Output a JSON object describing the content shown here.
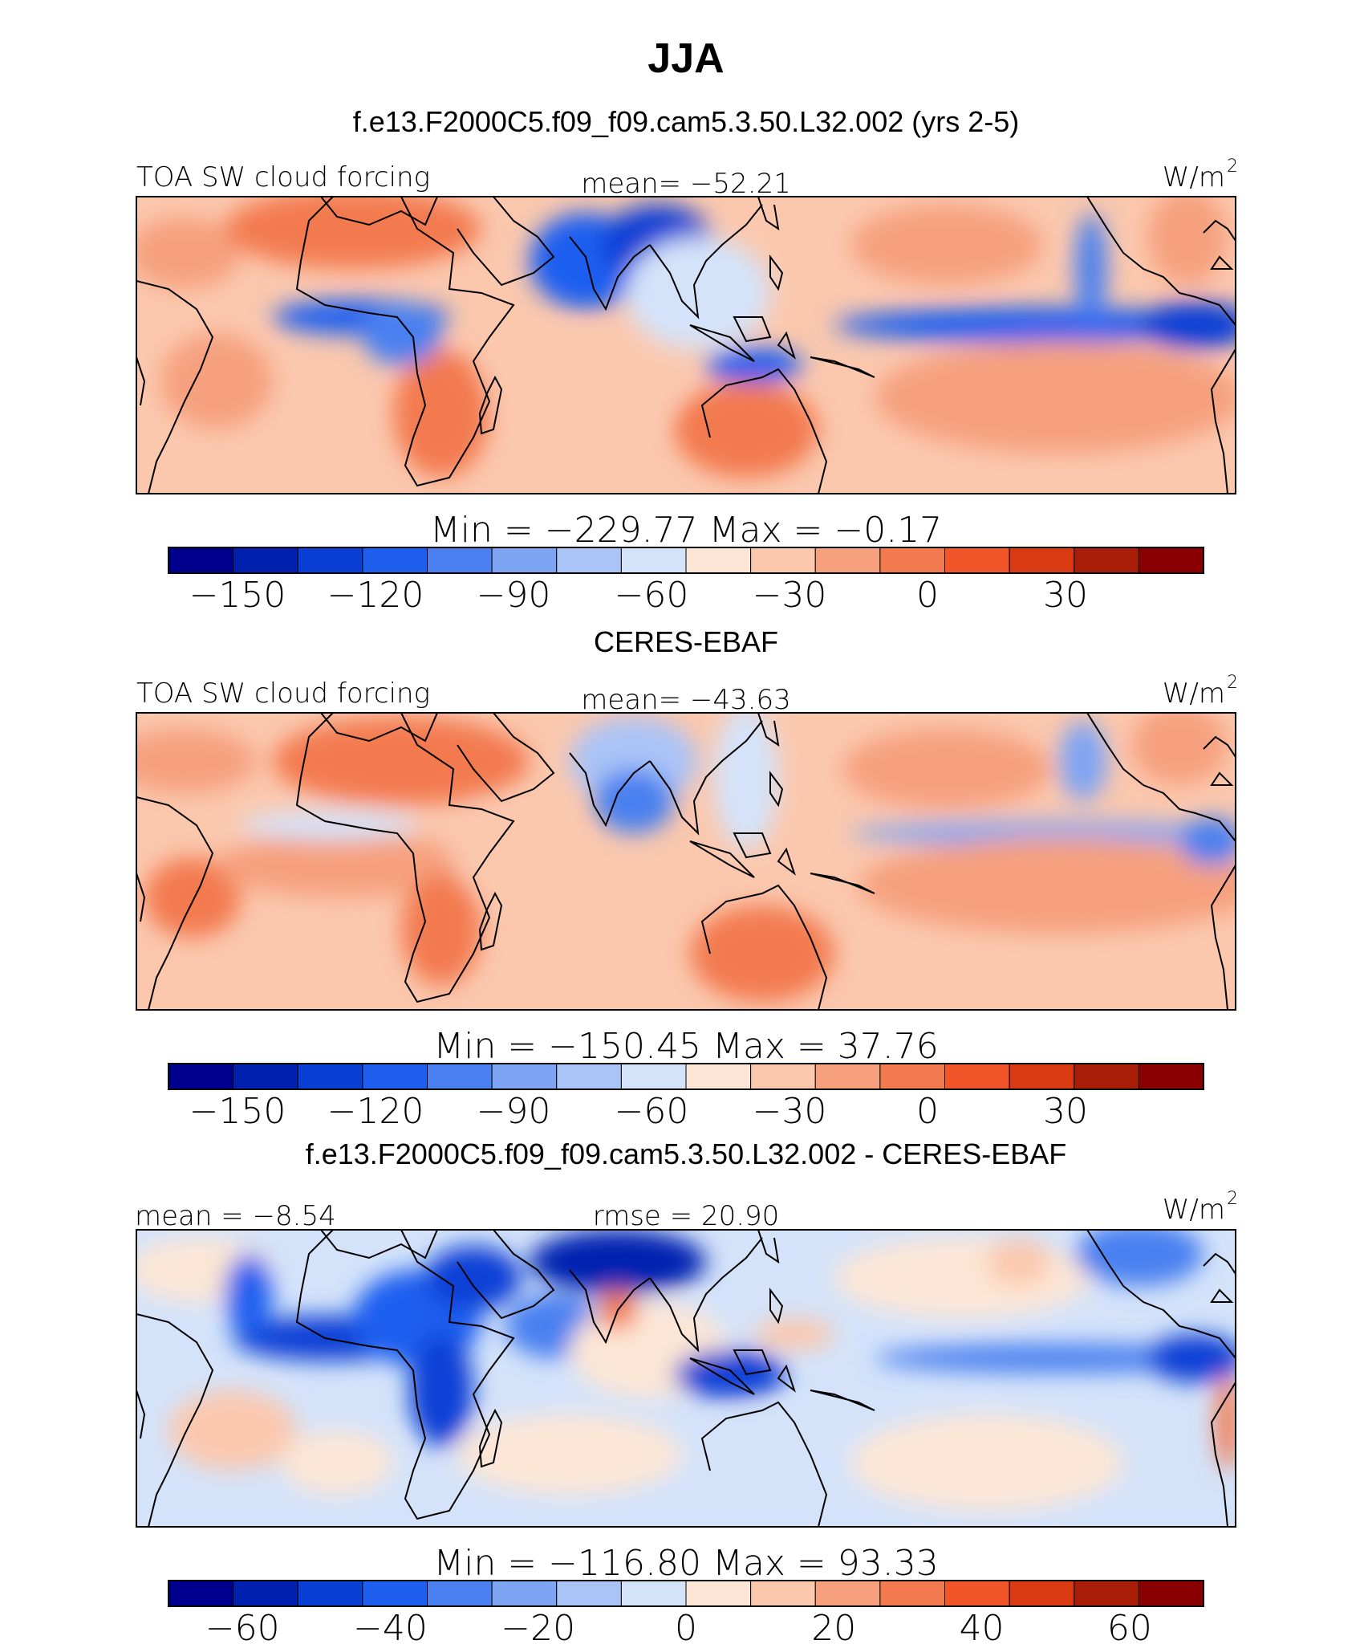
{
  "figure": {
    "title": "JJA",
    "panels": [
      {
        "id": "model",
        "subtitle": "f.e13.F2000C5.f09_f09.cam5.3.50.L32.002 (yrs 2-5)",
        "left_label": "TOA SW cloud forcing",
        "center_label": "mean= −52.21",
        "right_label": "W/m",
        "right_sup": "2",
        "stats": "Min = −229.77 Max = −0.17",
        "colorbar": {
          "levels": [
            -165,
            -150,
            -135,
            -120,
            -105,
            -90,
            -75,
            -60,
            -45,
            -30,
            -15,
            0,
            15,
            30,
            45,
            60
          ],
          "tick_labels": [
            "−150",
            "−120",
            "−90",
            "−60",
            "−30",
            "0",
            "30"
          ],
          "tick_values": [
            -150,
            -120,
            -90,
            -60,
            -30,
            0,
            30
          ]
        }
      },
      {
        "id": "obs",
        "subtitle": "CERES-EBAF",
        "left_label": "TOA SW cloud forcing",
        "center_label": "mean= −43.63",
        "right_label": "W/m",
        "right_sup": "2",
        "stats": "Min = −150.45 Max = 37.76",
        "colorbar": {
          "levels": [
            -165,
            -150,
            -135,
            -120,
            -105,
            -90,
            -75,
            -60,
            -45,
            -30,
            -15,
            0,
            15,
            30,
            45,
            60
          ],
          "tick_labels": [
            "−150",
            "−120",
            "−90",
            "−60",
            "−30",
            "0",
            "30"
          ],
          "tick_values": [
            -150,
            -120,
            -90,
            -60,
            -30,
            0,
            30
          ]
        }
      },
      {
        "id": "diff",
        "subtitle": "f.e13.F2000C5.f09_f09.cam5.3.50.L32.002 - CERES-EBAF",
        "left_label": "mean = −8.54",
        "center_label": "rmse = 20.90",
        "right_label": "W/m",
        "right_sup": "2",
        "stats": "Min = −116.80 Max = 93.33",
        "colorbar": {
          "levels": [
            -70,
            -60,
            -50,
            -40,
            -30,
            -20,
            -10,
            0,
            10,
            20,
            30,
            40,
            50,
            60,
            70
          ],
          "tick_labels": [
            "−60",
            "−40",
            "−20",
            "0",
            "20",
            "40",
            "60"
          ],
          "tick_values": [
            -60,
            -40,
            -20,
            0,
            20,
            40,
            60
          ]
        }
      }
    ]
  },
  "chart_data": [
    {
      "type": "heatmap",
      "title": "JJA",
      "subtitle": "f.e13.F2000C5.f09_f09.cam5.3.50.L32.002 (yrs 2-5)",
      "variable": "TOA SW cloud forcing",
      "units": "W/m2",
      "mean": -52.21,
      "min": -229.77,
      "max": -0.17,
      "colorbar_boundaries": [
        -165,
        -150,
        -135,
        -120,
        -105,
        -90,
        -75,
        -60,
        -45,
        -30,
        -15,
        0,
        15,
        30,
        45,
        60
      ]
    },
    {
      "type": "heatmap",
      "subtitle": "CERES-EBAF",
      "variable": "TOA SW cloud forcing",
      "units": "W/m2",
      "mean": -43.63,
      "min": -150.45,
      "max": 37.76,
      "colorbar_boundaries": [
        -165,
        -150,
        -135,
        -120,
        -105,
        -90,
        -75,
        -60,
        -45,
        -30,
        -15,
        0,
        15,
        30,
        45,
        60
      ]
    },
    {
      "type": "heatmap",
      "subtitle": "f.e13.F2000C5.f09_f09.cam5.3.50.L32.002 - CERES-EBAF",
      "units": "W/m2",
      "mean": -8.54,
      "rmse": 20.9,
      "min": -116.8,
      "max": 93.33,
      "colorbar_boundaries": [
        -70,
        -60,
        -50,
        -40,
        -30,
        -20,
        -10,
        0,
        10,
        20,
        30,
        40,
        50,
        60,
        70
      ]
    }
  ],
  "palette": [
    "#00008f",
    "#0020b0",
    "#0a3fd6",
    "#1f5ff0",
    "#4a80f0",
    "#7ea4f4",
    "#aac4f7",
    "#d4e3fa",
    "#fde6d5",
    "#fbc8ae",
    "#f6a07e",
    "#f37a4f",
    "#f1562b",
    "#d93a12",
    "#a81e08",
    "#8a0000"
  ]
}
